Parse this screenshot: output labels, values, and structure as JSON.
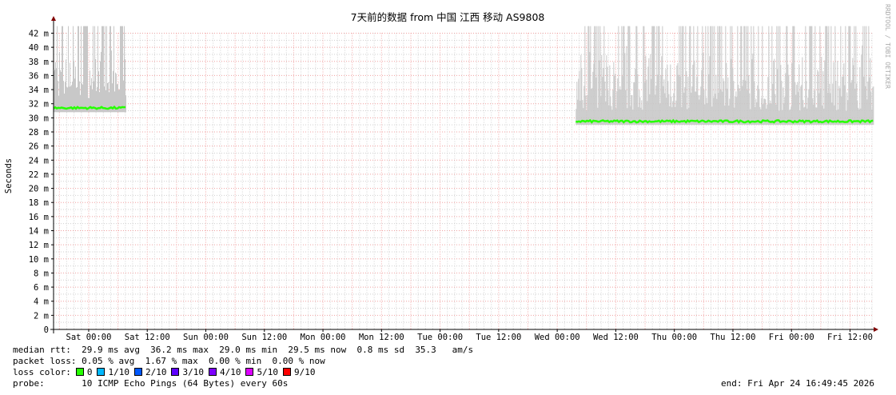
{
  "chart_data": {
    "type": "area",
    "title": "7天前的数据 from 中国 江西 移动 AS9808",
    "ylabel": "Seconds",
    "xlabel": "",
    "ylim": [
      0,
      42
    ],
    "yticks": [
      "0",
      "2 m",
      "4 m",
      "6 m",
      "8 m",
      "10 m",
      "12 m",
      "14 m",
      "16 m",
      "18 m",
      "20 m",
      "22 m",
      "24 m",
      "26 m",
      "28 m",
      "30 m",
      "32 m",
      "34 m",
      "36 m",
      "38 m",
      "40 m",
      "42 m"
    ],
    "xticks": [
      "Sat 00:00",
      "Sat 12:00",
      "Sun 00:00",
      "Sun 12:00",
      "Mon 00:00",
      "Mon 12:00",
      "Tue 00:00",
      "Tue 12:00",
      "Wed 00:00",
      "Wed 12:00",
      "Thu 00:00",
      "Thu 12:00",
      "Fri 00:00",
      "Fri 12:00"
    ],
    "xrange_hours_from_sat0000": [
      -7.2,
      160.83
    ],
    "grid": true,
    "watermark": "RRDTOOL / TOBI OETIKER",
    "series": [
      {
        "kind": "median",
        "segments": [
          {
            "start_h": -7.2,
            "end_h": 7.7,
            "value_ms": 31.4
          },
          {
            "start_h": 99.8,
            "end_h": 160.8,
            "value_ms": 29.5
          }
        ]
      },
      {
        "kind": "smoke",
        "segments": [
          {
            "start_h": -7.2,
            "end_h": 7.7,
            "min_ms": 30.8,
            "max_ms": 43
          },
          {
            "start_h": 99.8,
            "end_h": 160.8,
            "min_ms": 29.0,
            "max_ms": 43
          }
        ]
      }
    ],
    "colors": {
      "smoke": "#c8c8c8",
      "median_ok": "#26ff00",
      "grid_major": "#f0a0a0",
      "grid_minor": "#d0d0d0",
      "arrow": "#800000"
    }
  },
  "legend": {
    "rtt": "median rtt:  29.9 ms avg  36.2 ms max  29.0 ms min  29.5 ms now  0.8 ms sd  35.3   am/s",
    "loss": "packet loss: 0.05 % avg  1.67 % max  0.00 % min  0.00 % now",
    "loss_color_label": "loss color:",
    "loss_colors": [
      {
        "label": "0",
        "color": "#26ff00"
      },
      {
        "label": "1/10",
        "color": "#00b8ff"
      },
      {
        "label": "2/10",
        "color": "#0059ff"
      },
      {
        "label": "3/10",
        "color": "#5e00ff"
      },
      {
        "label": "4/10",
        "color": "#7e00ff"
      },
      {
        "label": "5/10",
        "color": "#dd00ff"
      },
      {
        "label": "9/10",
        "color": "#ff0000"
      }
    ],
    "probe": "probe:       10 ICMP Echo Pings (64 Bytes) every 60s",
    "end": "end: Fri Apr 24 16:49:45 2026"
  }
}
